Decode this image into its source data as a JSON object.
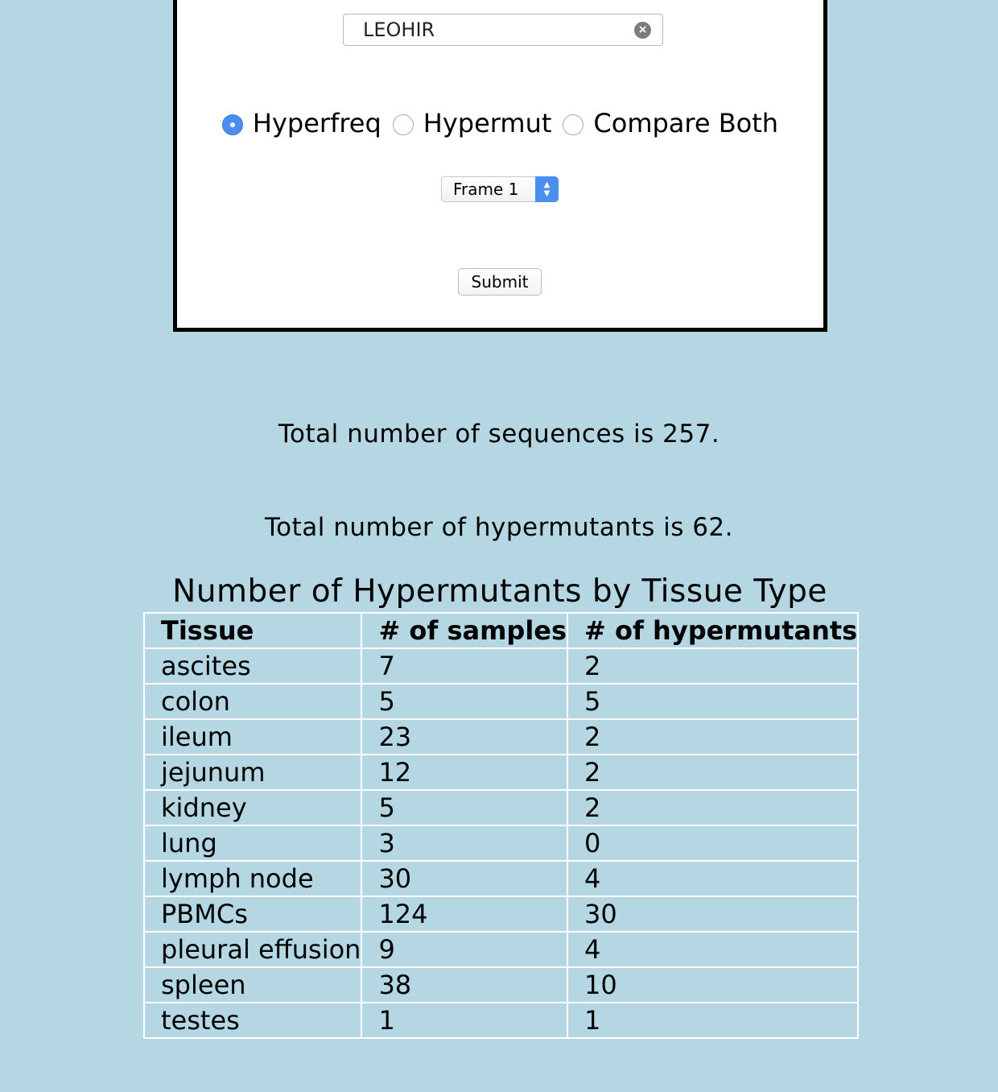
{
  "form": {
    "search_value": "LEOHIR",
    "clear_icon": "×",
    "radios": [
      {
        "label": "Hyperfreq",
        "checked": true
      },
      {
        "label": "Hypermut",
        "checked": false
      },
      {
        "label": "Compare Both",
        "checked": false
      }
    ],
    "frame_select": {
      "selected": "Frame 1",
      "arrows_up": "▲",
      "arrows_down": "▼"
    },
    "submit_label": "Submit"
  },
  "summary": {
    "sequences_text": "Total number of sequences is 257.",
    "hypermutants_text": "Total number of hypermutants is 62."
  },
  "table": {
    "title": "Number of Hypermutants by Tissue Type",
    "headers": [
      "Tissue",
      "# of samples",
      "# of hypermutants"
    ],
    "rows": [
      [
        "ascites",
        "7",
        "2"
      ],
      [
        "colon",
        "5",
        "5"
      ],
      [
        "ileum",
        "23",
        "2"
      ],
      [
        "jejunum",
        "12",
        "2"
      ],
      [
        "kidney",
        "5",
        "2"
      ],
      [
        "lung",
        "3",
        "0"
      ],
      [
        "lymph node",
        "30",
        "4"
      ],
      [
        "PBMCs",
        "124",
        "30"
      ],
      [
        "pleural effusion",
        "9",
        "4"
      ],
      [
        "spleen",
        "38",
        "10"
      ],
      [
        "testes",
        "1",
        "1"
      ]
    ]
  },
  "colors": {
    "background": "#b5d7e3",
    "accent": "#4c8ef0",
    "panel": "#ffffff"
  }
}
